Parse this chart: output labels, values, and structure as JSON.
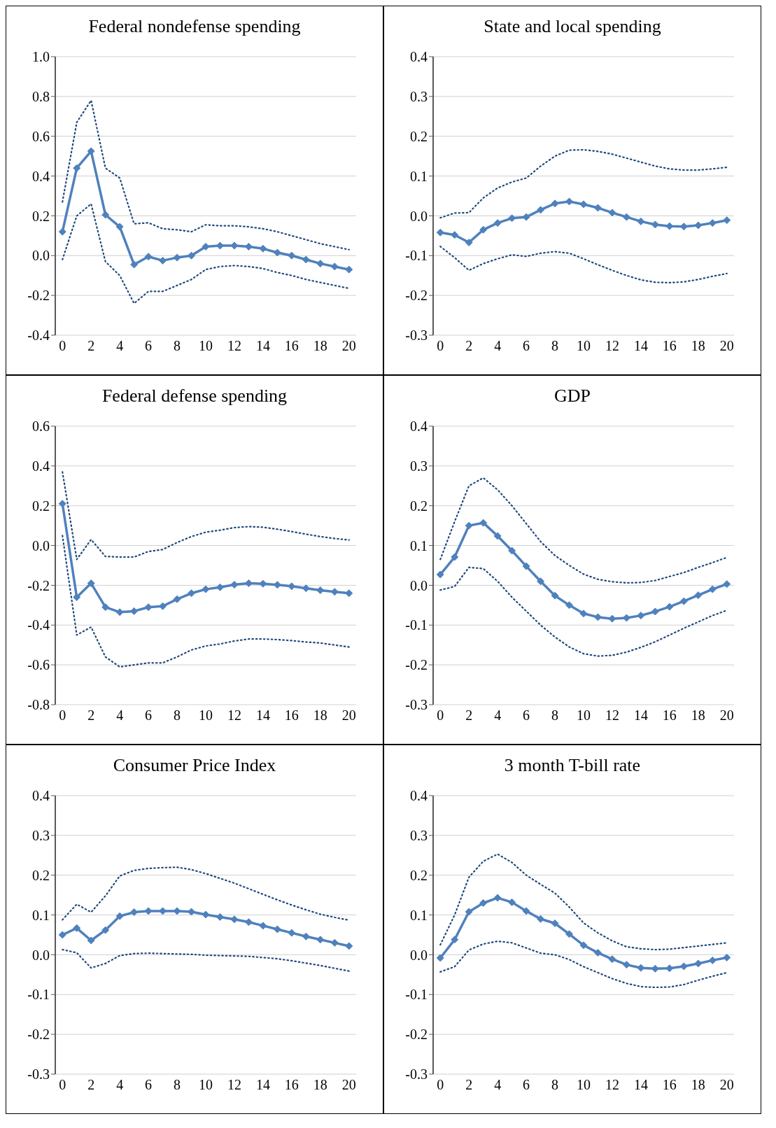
{
  "chart_data": [
    {
      "type": "line",
      "title": "Federal nondefense spending",
      "x": [
        0,
        1,
        2,
        3,
        4,
        5,
        6,
        7,
        8,
        9,
        10,
        11,
        12,
        13,
        14,
        15,
        16,
        17,
        18,
        19,
        20
      ],
      "xlim": [
        -0.5,
        20.5
      ],
      "xticks": [
        0,
        2,
        4,
        6,
        8,
        10,
        12,
        14,
        16,
        18,
        20
      ],
      "ylim": [
        -0.4,
        1.0
      ],
      "yticks": [
        {
          "value": -0.4,
          "label": "-0.4"
        },
        {
          "value": -0.2,
          "label": "-0.2"
        },
        {
          "value": 0,
          "label": "0.0"
        },
        {
          "value": 0.2,
          "label": "0.2"
        },
        {
          "value": 0.4,
          "label": "0.4"
        },
        {
          "value": 0.6,
          "label": "0.6"
        },
        {
          "value": 0.8,
          "label": "0.8"
        },
        {
          "value": 1.0,
          "label": "1.0"
        }
      ],
      "grid": "y",
      "series": [
        {
          "color": "#4f81bd",
          "marker": "diamond",
          "line_style": "solid",
          "values": [
            0.12,
            0.44,
            0.525,
            0.205,
            0.145,
            -0.045,
            -0.005,
            -0.025,
            -0.01,
            0.0,
            0.045,
            0.05,
            0.05,
            0.045,
            0.035,
            0.015,
            0.0,
            -0.02,
            -0.04,
            -0.055,
            -0.07
          ]
        },
        {
          "color": "#1f497d",
          "marker": "none",
          "line_style": "dotted",
          "values": [
            0.27,
            0.67,
            0.78,
            0.44,
            0.39,
            0.16,
            0.165,
            0.135,
            0.13,
            0.12,
            0.155,
            0.15,
            0.15,
            0.145,
            0.135,
            0.12,
            0.1,
            0.08,
            0.06,
            0.045,
            0.03
          ]
        },
        {
          "color": "#1f497d",
          "marker": "none",
          "line_style": "dotted",
          "values": [
            -0.02,
            0.2,
            0.26,
            -0.03,
            -0.1,
            -0.24,
            -0.18,
            -0.18,
            -0.15,
            -0.12,
            -0.07,
            -0.055,
            -0.05,
            -0.055,
            -0.065,
            -0.085,
            -0.1,
            -0.12,
            -0.135,
            -0.15,
            -0.165
          ]
        }
      ]
    },
    {
      "type": "line",
      "title": "State and local spending",
      "x": [
        0,
        1,
        2,
        3,
        4,
        5,
        6,
        7,
        8,
        9,
        10,
        11,
        12,
        13,
        14,
        15,
        16,
        17,
        18,
        19,
        20
      ],
      "xlim": [
        -0.5,
        20.5
      ],
      "xticks": [
        0,
        2,
        4,
        6,
        8,
        10,
        12,
        14,
        16,
        18,
        20
      ],
      "ylim": [
        -0.3,
        0.4
      ],
      "yticks": [
        {
          "value": -0.3,
          "label": "-0.3"
        },
        {
          "value": -0.2,
          "label": "-0.2"
        },
        {
          "value": -0.1,
          "label": "-0.1"
        },
        {
          "value": 0,
          "label": "0.0"
        },
        {
          "value": 0.1,
          "label": "0.1"
        },
        {
          "value": 0.2,
          "label": "0.2"
        },
        {
          "value": 0.3,
          "label": "0.3"
        },
        {
          "value": 0.4,
          "label": "0.4"
        }
      ],
      "grid": "y",
      "series": [
        {
          "color": "#4f81bd",
          "marker": "diamond",
          "line_style": "solid",
          "values": [
            -0.042,
            -0.048,
            -0.067,
            -0.035,
            -0.018,
            -0.006,
            -0.003,
            0.015,
            0.031,
            0.036,
            0.029,
            0.02,
            0.008,
            -0.003,
            -0.014,
            -0.022,
            -0.026,
            -0.027,
            -0.024,
            -0.018,
            -0.011
          ]
        },
        {
          "color": "#1f497d",
          "marker": "none",
          "line_style": "dotted",
          "values": [
            -0.005,
            0.007,
            0.008,
            0.045,
            0.07,
            0.085,
            0.095,
            0.125,
            0.15,
            0.165,
            0.166,
            0.162,
            0.155,
            0.145,
            0.135,
            0.125,
            0.118,
            0.115,
            0.115,
            0.118,
            0.122
          ]
        },
        {
          "color": "#1f497d",
          "marker": "none",
          "line_style": "dotted",
          "values": [
            -0.077,
            -0.105,
            -0.137,
            -0.12,
            -0.108,
            -0.098,
            -0.102,
            -0.094,
            -0.09,
            -0.094,
            -0.108,
            -0.123,
            -0.137,
            -0.15,
            -0.161,
            -0.167,
            -0.168,
            -0.166,
            -0.16,
            -0.152,
            -0.145
          ]
        }
      ]
    },
    {
      "type": "line",
      "title": "Federal defense spending",
      "x": [
        0,
        1,
        2,
        3,
        4,
        5,
        6,
        7,
        8,
        9,
        10,
        11,
        12,
        13,
        14,
        15,
        16,
        17,
        18,
        19,
        20
      ],
      "xlim": [
        -0.5,
        20.5
      ],
      "xticks": [
        0,
        2,
        4,
        6,
        8,
        10,
        12,
        14,
        16,
        18,
        20
      ],
      "ylim": [
        -0.8,
        0.6
      ],
      "yticks": [
        {
          "value": -0.8,
          "label": "-0.8"
        },
        {
          "value": -0.6,
          "label": "-0.6"
        },
        {
          "value": -0.4,
          "label": "-0.4"
        },
        {
          "value": -0.2,
          "label": "-0.2"
        },
        {
          "value": 0,
          "label": "0.0"
        },
        {
          "value": 0.2,
          "label": "0.2"
        },
        {
          "value": 0.4,
          "label": "0.4"
        },
        {
          "value": 0.6,
          "label": "0.6"
        }
      ],
      "grid": "y",
      "series": [
        {
          "color": "#4f81bd",
          "marker": "diamond",
          "line_style": "solid",
          "values": [
            0.21,
            -0.26,
            -0.19,
            -0.31,
            -0.335,
            -0.33,
            -0.31,
            -0.305,
            -0.27,
            -0.24,
            -0.22,
            -0.21,
            -0.197,
            -0.19,
            -0.192,
            -0.198,
            -0.205,
            -0.215,
            -0.225,
            -0.233,
            -0.24
          ]
        },
        {
          "color": "#1f497d",
          "marker": "none",
          "line_style": "dotted",
          "values": [
            0.37,
            -0.07,
            0.03,
            -0.055,
            -0.058,
            -0.058,
            -0.03,
            -0.02,
            0.015,
            0.045,
            0.067,
            0.077,
            0.09,
            0.095,
            0.092,
            0.082,
            0.07,
            0.057,
            0.045,
            0.035,
            0.028
          ]
        },
        {
          "color": "#1f497d",
          "marker": "none",
          "line_style": "dotted",
          "values": [
            0.05,
            -0.45,
            -0.41,
            -0.56,
            -0.61,
            -0.6,
            -0.59,
            -0.59,
            -0.56,
            -0.525,
            -0.505,
            -0.495,
            -0.48,
            -0.47,
            -0.47,
            -0.473,
            -0.478,
            -0.485,
            -0.49,
            -0.5,
            -0.51
          ]
        }
      ]
    },
    {
      "type": "line",
      "title": "GDP",
      "x": [
        0,
        1,
        2,
        3,
        4,
        5,
        6,
        7,
        8,
        9,
        10,
        11,
        12,
        13,
        14,
        15,
        16,
        17,
        18,
        19,
        20
      ],
      "xlim": [
        -0.5,
        20.5
      ],
      "xticks": [
        0,
        2,
        4,
        6,
        8,
        10,
        12,
        14,
        16,
        18,
        20
      ],
      "ylim": [
        -0.3,
        0.4
      ],
      "yticks": [
        {
          "value": -0.3,
          "label": "-0.3"
        },
        {
          "value": -0.2,
          "label": "-0.2"
        },
        {
          "value": -0.1,
          "label": "-0.1"
        },
        {
          "value": 0,
          "label": "0.0"
        },
        {
          "value": 0.1,
          "label": "0.1"
        },
        {
          "value": 0.2,
          "label": "0.2"
        },
        {
          "value": 0.3,
          "label": "0.3"
        },
        {
          "value": 0.4,
          "label": "0.4"
        }
      ],
      "grid": "y",
      "series": [
        {
          "color": "#4f81bd",
          "marker": "diamond",
          "line_style": "solid",
          "values": [
            0.027,
            0.071,
            0.15,
            0.157,
            0.124,
            0.087,
            0.048,
            0.01,
            -0.026,
            -0.05,
            -0.071,
            -0.08,
            -0.084,
            -0.082,
            -0.076,
            -0.066,
            -0.054,
            -0.04,
            -0.025,
            -0.01,
            0.003
          ]
        },
        {
          "color": "#1f497d",
          "marker": "none",
          "line_style": "dotted",
          "values": [
            0.065,
            0.16,
            0.25,
            0.27,
            0.24,
            0.2,
            0.155,
            0.11,
            0.075,
            0.05,
            0.028,
            0.015,
            0.009,
            0.006,
            0.007,
            0.012,
            0.022,
            0.032,
            0.045,
            0.057,
            0.07
          ]
        },
        {
          "color": "#1f497d",
          "marker": "none",
          "line_style": "dotted",
          "values": [
            -0.012,
            -0.003,
            0.045,
            0.042,
            0.01,
            -0.03,
            -0.065,
            -0.1,
            -0.13,
            -0.155,
            -0.172,
            -0.178,
            -0.176,
            -0.168,
            -0.156,
            -0.142,
            -0.125,
            -0.108,
            -0.092,
            -0.076,
            -0.063
          ]
        }
      ]
    },
    {
      "type": "line",
      "title": "Consumer Price Index",
      "x": [
        0,
        1,
        2,
        3,
        4,
        5,
        6,
        7,
        8,
        9,
        10,
        11,
        12,
        13,
        14,
        15,
        16,
        17,
        18,
        19,
        20
      ],
      "xlim": [
        -0.5,
        20.5
      ],
      "xticks": [
        0,
        2,
        4,
        6,
        8,
        10,
        12,
        14,
        16,
        18,
        20
      ],
      "ylim": [
        -0.3,
        0.4
      ],
      "yticks": [
        {
          "value": -0.3,
          "label": "-0.3"
        },
        {
          "value": -0.2,
          "label": "-0.2"
        },
        {
          "value": -0.1,
          "label": "-0.1"
        },
        {
          "value": 0,
          "label": "0.0"
        },
        {
          "value": 0.1,
          "label": "0.1"
        },
        {
          "value": 0.2,
          "label": "0.2"
        },
        {
          "value": 0.3,
          "label": "0.3"
        },
        {
          "value": 0.4,
          "label": "0.4"
        }
      ],
      "grid": "y",
      "series": [
        {
          "color": "#4f81bd",
          "marker": "diamond",
          "line_style": "solid",
          "values": [
            0.05,
            0.067,
            0.036,
            0.062,
            0.097,
            0.107,
            0.11,
            0.11,
            0.11,
            0.108,
            0.101,
            0.095,
            0.089,
            0.082,
            0.073,
            0.064,
            0.055,
            0.046,
            0.038,
            0.03,
            0.022
          ]
        },
        {
          "color": "#1f497d",
          "marker": "none",
          "line_style": "dotted",
          "values": [
            0.088,
            0.127,
            0.107,
            0.148,
            0.198,
            0.212,
            0.217,
            0.219,
            0.22,
            0.214,
            0.204,
            0.192,
            0.18,
            0.166,
            0.152,
            0.138,
            0.125,
            0.113,
            0.102,
            0.094,
            0.087
          ]
        },
        {
          "color": "#1f497d",
          "marker": "none",
          "line_style": "dotted",
          "values": [
            0.013,
            0.005,
            -0.033,
            -0.022,
            -0.002,
            0.003,
            0.004,
            0.003,
            0.002,
            0.001,
            -0.001,
            -0.002,
            -0.003,
            -0.004,
            -0.007,
            -0.01,
            -0.015,
            -0.021,
            -0.027,
            -0.034,
            -0.041
          ]
        }
      ]
    },
    {
      "type": "line",
      "title": "3 month T-bill rate",
      "x": [
        0,
        1,
        2,
        3,
        4,
        5,
        6,
        7,
        8,
        9,
        10,
        11,
        12,
        13,
        14,
        15,
        16,
        17,
        18,
        19,
        20
      ],
      "xlim": [
        -0.5,
        20.5
      ],
      "xticks": [
        0,
        2,
        4,
        6,
        8,
        10,
        12,
        14,
        16,
        18,
        20
      ],
      "ylim": [
        -0.3,
        0.4
      ],
      "yticks": [
        {
          "value": -0.3,
          "label": "-0.3"
        },
        {
          "value": -0.2,
          "label": "-0.2"
        },
        {
          "value": -0.1,
          "label": "-0.1"
        },
        {
          "value": 0,
          "label": "0.0"
        },
        {
          "value": 0.1,
          "label": "0.1"
        },
        {
          "value": 0.2,
          "label": "0.2"
        },
        {
          "value": 0.3,
          "label": "0.3"
        },
        {
          "value": 0.4,
          "label": "0.4"
        }
      ],
      "grid": "y",
      "series": [
        {
          "color": "#4f81bd",
          "marker": "diamond",
          "line_style": "solid",
          "values": [
            -0.008,
            0.038,
            0.108,
            0.13,
            0.143,
            0.132,
            0.11,
            0.09,
            0.079,
            0.052,
            0.024,
            0.005,
            -0.011,
            -0.025,
            -0.033,
            -0.035,
            -0.034,
            -0.029,
            -0.022,
            -0.014,
            -0.007
          ]
        },
        {
          "color": "#1f497d",
          "marker": "none",
          "line_style": "dotted",
          "values": [
            0.025,
            0.1,
            0.195,
            0.235,
            0.253,
            0.232,
            0.2,
            0.177,
            0.155,
            0.12,
            0.08,
            0.055,
            0.035,
            0.02,
            0.015,
            0.013,
            0.014,
            0.018,
            0.022,
            0.026,
            0.03
          ]
        },
        {
          "color": "#1f497d",
          "marker": "none",
          "line_style": "dotted",
          "values": [
            -0.043,
            -0.03,
            0.012,
            0.027,
            0.034,
            0.03,
            0.017,
            0.004,
            0.0,
            -0.012,
            -0.03,
            -0.045,
            -0.06,
            -0.072,
            -0.08,
            -0.082,
            -0.081,
            -0.075,
            -0.064,
            -0.054,
            -0.045
          ]
        }
      ]
    }
  ]
}
